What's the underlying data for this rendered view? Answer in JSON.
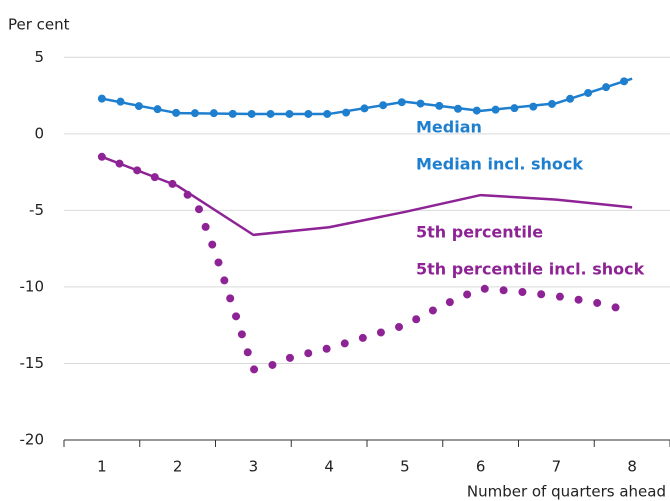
{
  "chart_data": {
    "type": "line",
    "y_label": "Per cent",
    "x_label": "Number of quarters ahead",
    "xlim": [
      0.5,
      8.5
    ],
    "xticks": [
      1,
      2,
      3,
      4,
      5,
      6,
      7,
      8
    ],
    "ylim": [
      -20,
      6
    ],
    "yticks": [
      -20,
      -15,
      -10,
      -5,
      0,
      5
    ],
    "grid": true,
    "series": [
      {
        "name": "Median",
        "color": "#1f7fcf",
        "style": "solid",
        "x": [
          1,
          2,
          3,
          4,
          5,
          6,
          7,
          8
        ],
        "values": [
          2.3,
          1.35,
          1.3,
          1.3,
          2.1,
          1.5,
          2.0,
          3.6
        ]
      },
      {
        "name": "Median incl. shock",
        "color": "#1f7fcf",
        "style": "dotted",
        "x": [
          1,
          1.25,
          1.5,
          1.75,
          2,
          2.25,
          2.5,
          2.75,
          3,
          3.25,
          3.5,
          3.75,
          4,
          4.25,
          4.5,
          4.75,
          5,
          5.25,
          5.5,
          5.75,
          6,
          6.25,
          6.5,
          6.75,
          7,
          7.25,
          7.5,
          7.75,
          8
        ],
        "values": [
          2.3,
          2.1,
          1.8,
          1.6,
          1.35,
          1.35,
          1.35,
          1.3,
          1.3,
          1.3,
          1.3,
          1.3,
          1.3,
          1.4,
          1.7,
          1.9,
          2.1,
          1.95,
          1.8,
          1.6,
          1.5,
          1.6,
          1.7,
          1.8,
          2.0,
          2.4,
          2.8,
          3.2,
          3.6
        ]
      },
      {
        "name": "5th percentile",
        "color": "#8e2396",
        "style": "solid",
        "x": [
          1,
          2,
          3,
          4,
          5,
          6,
          7,
          8
        ],
        "values": [
          -1.5,
          -3.4,
          -6.6,
          -6.1,
          -5.1,
          -4.0,
          -4.3,
          -4.8
        ]
      },
      {
        "name": "5th percentile incl. shock",
        "color": "#8e2396",
        "style": "dotted",
        "x": [
          1,
          2,
          2.25,
          2.5,
          2.75,
          3,
          3.25,
          3.5,
          4,
          5,
          5.5,
          6,
          6.5,
          7,
          7.5,
          8
        ],
        "values": [
          -1.5,
          -3.4,
          -4.5,
          -7.8,
          -11.6,
          -15.4,
          -15.1,
          -14.6,
          -14.0,
          -12.5,
          -11.2,
          -10.1,
          -10.3,
          -10.6,
          -11.0,
          -11.6
        ]
      }
    ]
  }
}
